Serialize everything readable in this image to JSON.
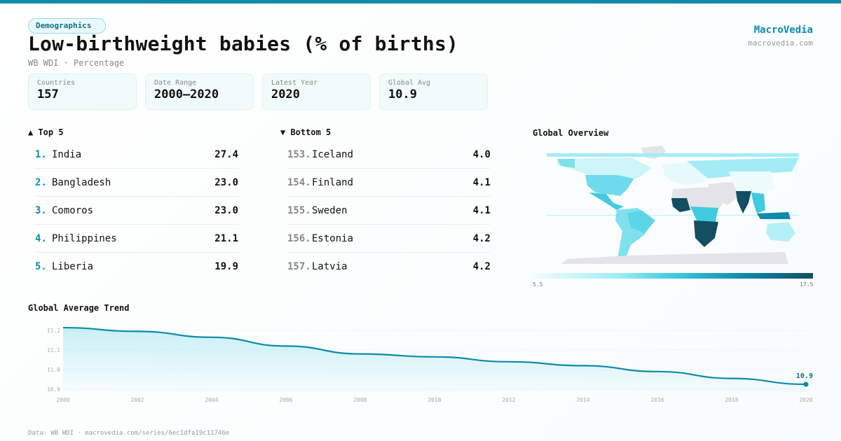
{
  "header": {
    "category": "Demographics",
    "title": "Low-birthweight babies (% of births)",
    "subtitle": "WB WDI · Percentage",
    "brand": "MacroVedia",
    "brand_url": "macrovedia.com"
  },
  "stats": [
    {
      "label": "Countries",
      "value": "157"
    },
    {
      "label": "Date Range",
      "value": "2000–2020"
    },
    {
      "label": "Latest Year",
      "value": "2020"
    },
    {
      "label": "Global Avg",
      "value": "10.9"
    }
  ],
  "top5": {
    "title": "▲ Top 5",
    "items": [
      {
        "rank": "1.",
        "name": "India",
        "value": "27.4"
      },
      {
        "rank": "2.",
        "name": "Bangladesh",
        "value": "23.0"
      },
      {
        "rank": "3.",
        "name": "Comoros",
        "value": "23.0"
      },
      {
        "rank": "4.",
        "name": "Philippines",
        "value": "21.1"
      },
      {
        "rank": "5.",
        "name": "Liberia",
        "value": "19.9"
      }
    ]
  },
  "bottom5": {
    "title": "▼ Bottom 5",
    "items": [
      {
        "rank": "153.",
        "name": "Iceland",
        "value": "4.0"
      },
      {
        "rank": "154.",
        "name": "Finland",
        "value": "4.1"
      },
      {
        "rank": "155.",
        "name": "Sweden",
        "value": "4.1"
      },
      {
        "rank": "156.",
        "name": "Estonia",
        "value": "4.2"
      },
      {
        "rank": "157.",
        "name": "Latvia",
        "value": "4.2"
      }
    ]
  },
  "map": {
    "title": "Global Overview",
    "legend_min": "5.5",
    "legend_max": "17.5",
    "colors": {
      "low": "#f3fcfd",
      "mid": "#3fcbe0",
      "high": "#134e63",
      "nodata": "#e4e4e8"
    }
  },
  "chart_data": {
    "type": "area",
    "title": "Global Average Trend",
    "x": [
      2000,
      2002,
      2004,
      2006,
      2008,
      2010,
      2012,
      2014,
      2016,
      2018,
      2020
    ],
    "y": [
      11.214,
      11.195,
      11.165,
      11.12,
      11.08,
      11.065,
      11.04,
      11.02,
      10.99,
      10.955,
      10.925
    ],
    "yticks": [
      "10.9",
      "11.0",
      "11.1",
      "11.2"
    ],
    "xticks": [
      "2000",
      "2002",
      "2004",
      "2006",
      "2008",
      "2010",
      "2012",
      "2014",
      "2016",
      "2018",
      "2020"
    ],
    "ylim": [
      10.9,
      11.2
    ],
    "last_label": "10.9",
    "grid": true,
    "color": "#0e8aab"
  },
  "footer": "Data: WB WDI · macrovedia.com/series/6ec1dfa19c11746e"
}
